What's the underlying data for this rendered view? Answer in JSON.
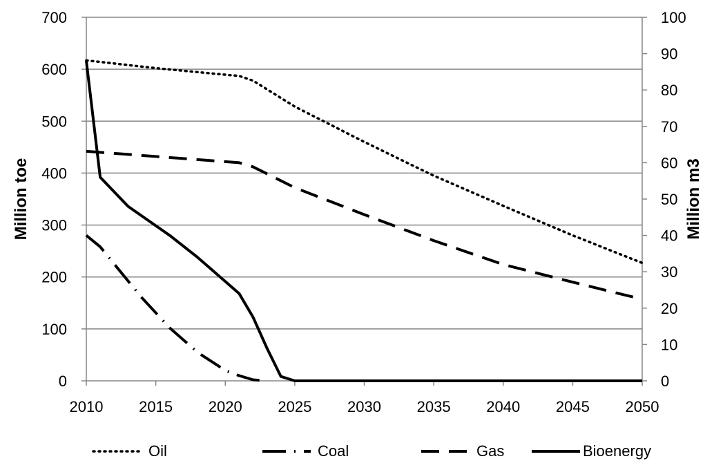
{
  "chart_data": {
    "type": "line",
    "x": [
      2010,
      2011,
      2012,
      2013,
      2014,
      2015,
      2016,
      2017,
      2018,
      2019,
      2020,
      2021,
      2022,
      2023,
      2024,
      2025,
      2030,
      2035,
      2040,
      2045,
      2050
    ],
    "x_ticks": [
      2010,
      2015,
      2020,
      2025,
      2030,
      2035,
      2040,
      2045,
      2050
    ],
    "xlim": [
      2010,
      2050
    ],
    "ylabel": "Million toe",
    "ylim": [
      0,
      700
    ],
    "y_ticks": [
      0,
      100,
      200,
      300,
      400,
      500,
      600,
      700
    ],
    "y2label": "Million m3",
    "y2lim": [
      0,
      100
    ],
    "y2_ticks": [
      0,
      10,
      20,
      30,
      40,
      50,
      60,
      70,
      80,
      90,
      100
    ],
    "grid": true,
    "legend_position": "bottom",
    "series": [
      {
        "name": "Oil",
        "axis": "left",
        "style": "dotted",
        "x": [
          2010,
          2011,
          2013,
          2015,
          2017,
          2019,
          2021,
          2022,
          2025,
          2030,
          2035,
          2040,
          2045,
          2050
        ],
        "values": [
          617,
          614,
          608,
          602,
          597,
          592,
          587,
          578,
          528,
          460,
          395,
          337,
          280,
          227
        ]
      },
      {
        "name": "Coal",
        "axis": "left",
        "style": "dash-dot",
        "x": [
          2010,
          2011,
          2012,
          2014,
          2016,
          2018,
          2020,
          2021,
          2022,
          2023
        ],
        "values": [
          280,
          258,
          225,
          160,
          102,
          55,
          20,
          10,
          2,
          0
        ]
      },
      {
        "name": "Gas",
        "axis": "left",
        "style": "dashed",
        "x": [
          2010,
          2012,
          2015,
          2018,
          2021,
          2022,
          2025,
          2030,
          2035,
          2040,
          2045,
          2050
        ],
        "values": [
          442,
          438,
          432,
          426,
          420,
          412,
          372,
          320,
          270,
          224,
          190,
          157
        ]
      },
      {
        "name": "Bioenergy",
        "axis": "right",
        "style": "solid",
        "x": [
          2010,
          2011,
          2013,
          2016,
          2018,
          2021,
          2022,
          2023,
          2024,
          2025,
          2030,
          2035,
          2040,
          2045,
          2050
        ],
        "values": [
          88,
          56,
          48,
          40,
          34,
          24,
          17.5,
          9,
          1.2,
          0,
          0,
          0,
          0,
          0,
          0
        ]
      }
    ]
  }
}
